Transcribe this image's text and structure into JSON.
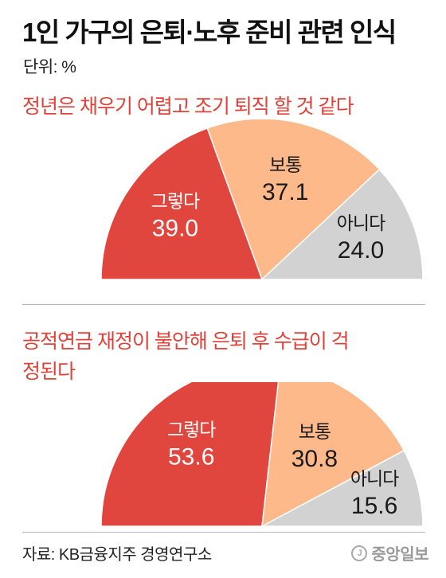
{
  "title": "1인 가구의 은퇴·노후 준비 관련 인식",
  "unit": "단위: %",
  "chart_data": [
    {
      "type": "pie",
      "title": "정년은 채우기 어렵고 조기 퇴직 할 것 같다",
      "categories": [
        "그렇다",
        "보통",
        "아니다"
      ],
      "values": [
        39.0,
        37.1,
        24.0
      ],
      "value_labels": [
        "39.0",
        "37.1",
        "24.0"
      ],
      "colors": [
        "#e0463d",
        "#fdb98a",
        "#d2d2d2"
      ],
      "shape": "semicircle",
      "legend": "none"
    },
    {
      "type": "pie",
      "title": "공적연금 재정이 불안해 은퇴 후 수급이 걱정된다",
      "categories": [
        "그렇다",
        "보통",
        "아니다"
      ],
      "values": [
        53.6,
        30.8,
        15.6
      ],
      "value_labels": [
        "53.6",
        "30.8",
        "15.6"
      ],
      "colors": [
        "#e0463d",
        "#fdb98a",
        "#d2d2d2"
      ],
      "shape": "semicircle",
      "legend": "none"
    }
  ],
  "footer": {
    "source": "자료: KB금융지주 경영연구소",
    "logo_text": "중앙일보",
    "logo_icon": "j-circle-icon"
  }
}
